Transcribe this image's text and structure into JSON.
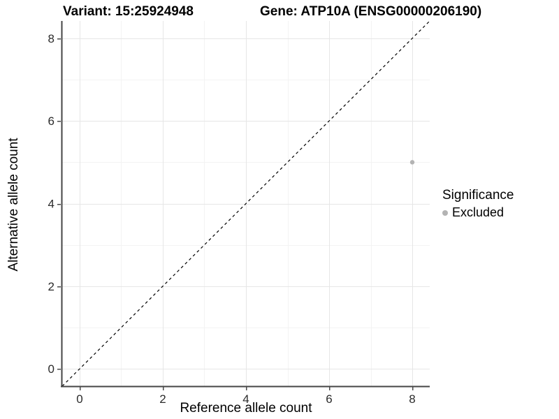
{
  "chart_data": {
    "type": "scatter",
    "title_left": "Variant: 15:25924948",
    "title_right": "Gene: ATP10A (ENSG00000206190)",
    "xlabel": "Reference allele count",
    "ylabel": "Alternative allele count",
    "xlim": [
      -0.42,
      8.42
    ],
    "ylim": [
      -0.42,
      8.42
    ],
    "x_ticks": [
      0,
      2,
      4,
      6,
      8
    ],
    "y_ticks": [
      0,
      2,
      4,
      6,
      8
    ],
    "x_minor_ticks": [
      1,
      3,
      5,
      7
    ],
    "y_minor_ticks": [
      1,
      3,
      5,
      7
    ],
    "grid": "major+minor",
    "points": [
      {
        "x": 8,
        "y": 5,
        "significance": "Excluded"
      }
    ],
    "identity_line": {
      "style": "dashed",
      "from": [
        -0.42,
        -0.42
      ],
      "to": [
        8.42,
        8.42
      ],
      "color": "#000000"
    },
    "legend": {
      "title": "Significance",
      "position": "right",
      "items": [
        {
          "label": "Excluded",
          "color": "#b3b3b3"
        }
      ]
    },
    "colors": {
      "point": "#b3b3b3",
      "grid_major": "#e6e6e6",
      "grid_minor": "#f3f3f3",
      "axis_line": "#454545",
      "tick_mark": "#4a4a4a",
      "tick_label": "#2b2b2b",
      "background": "#ffffff"
    }
  }
}
